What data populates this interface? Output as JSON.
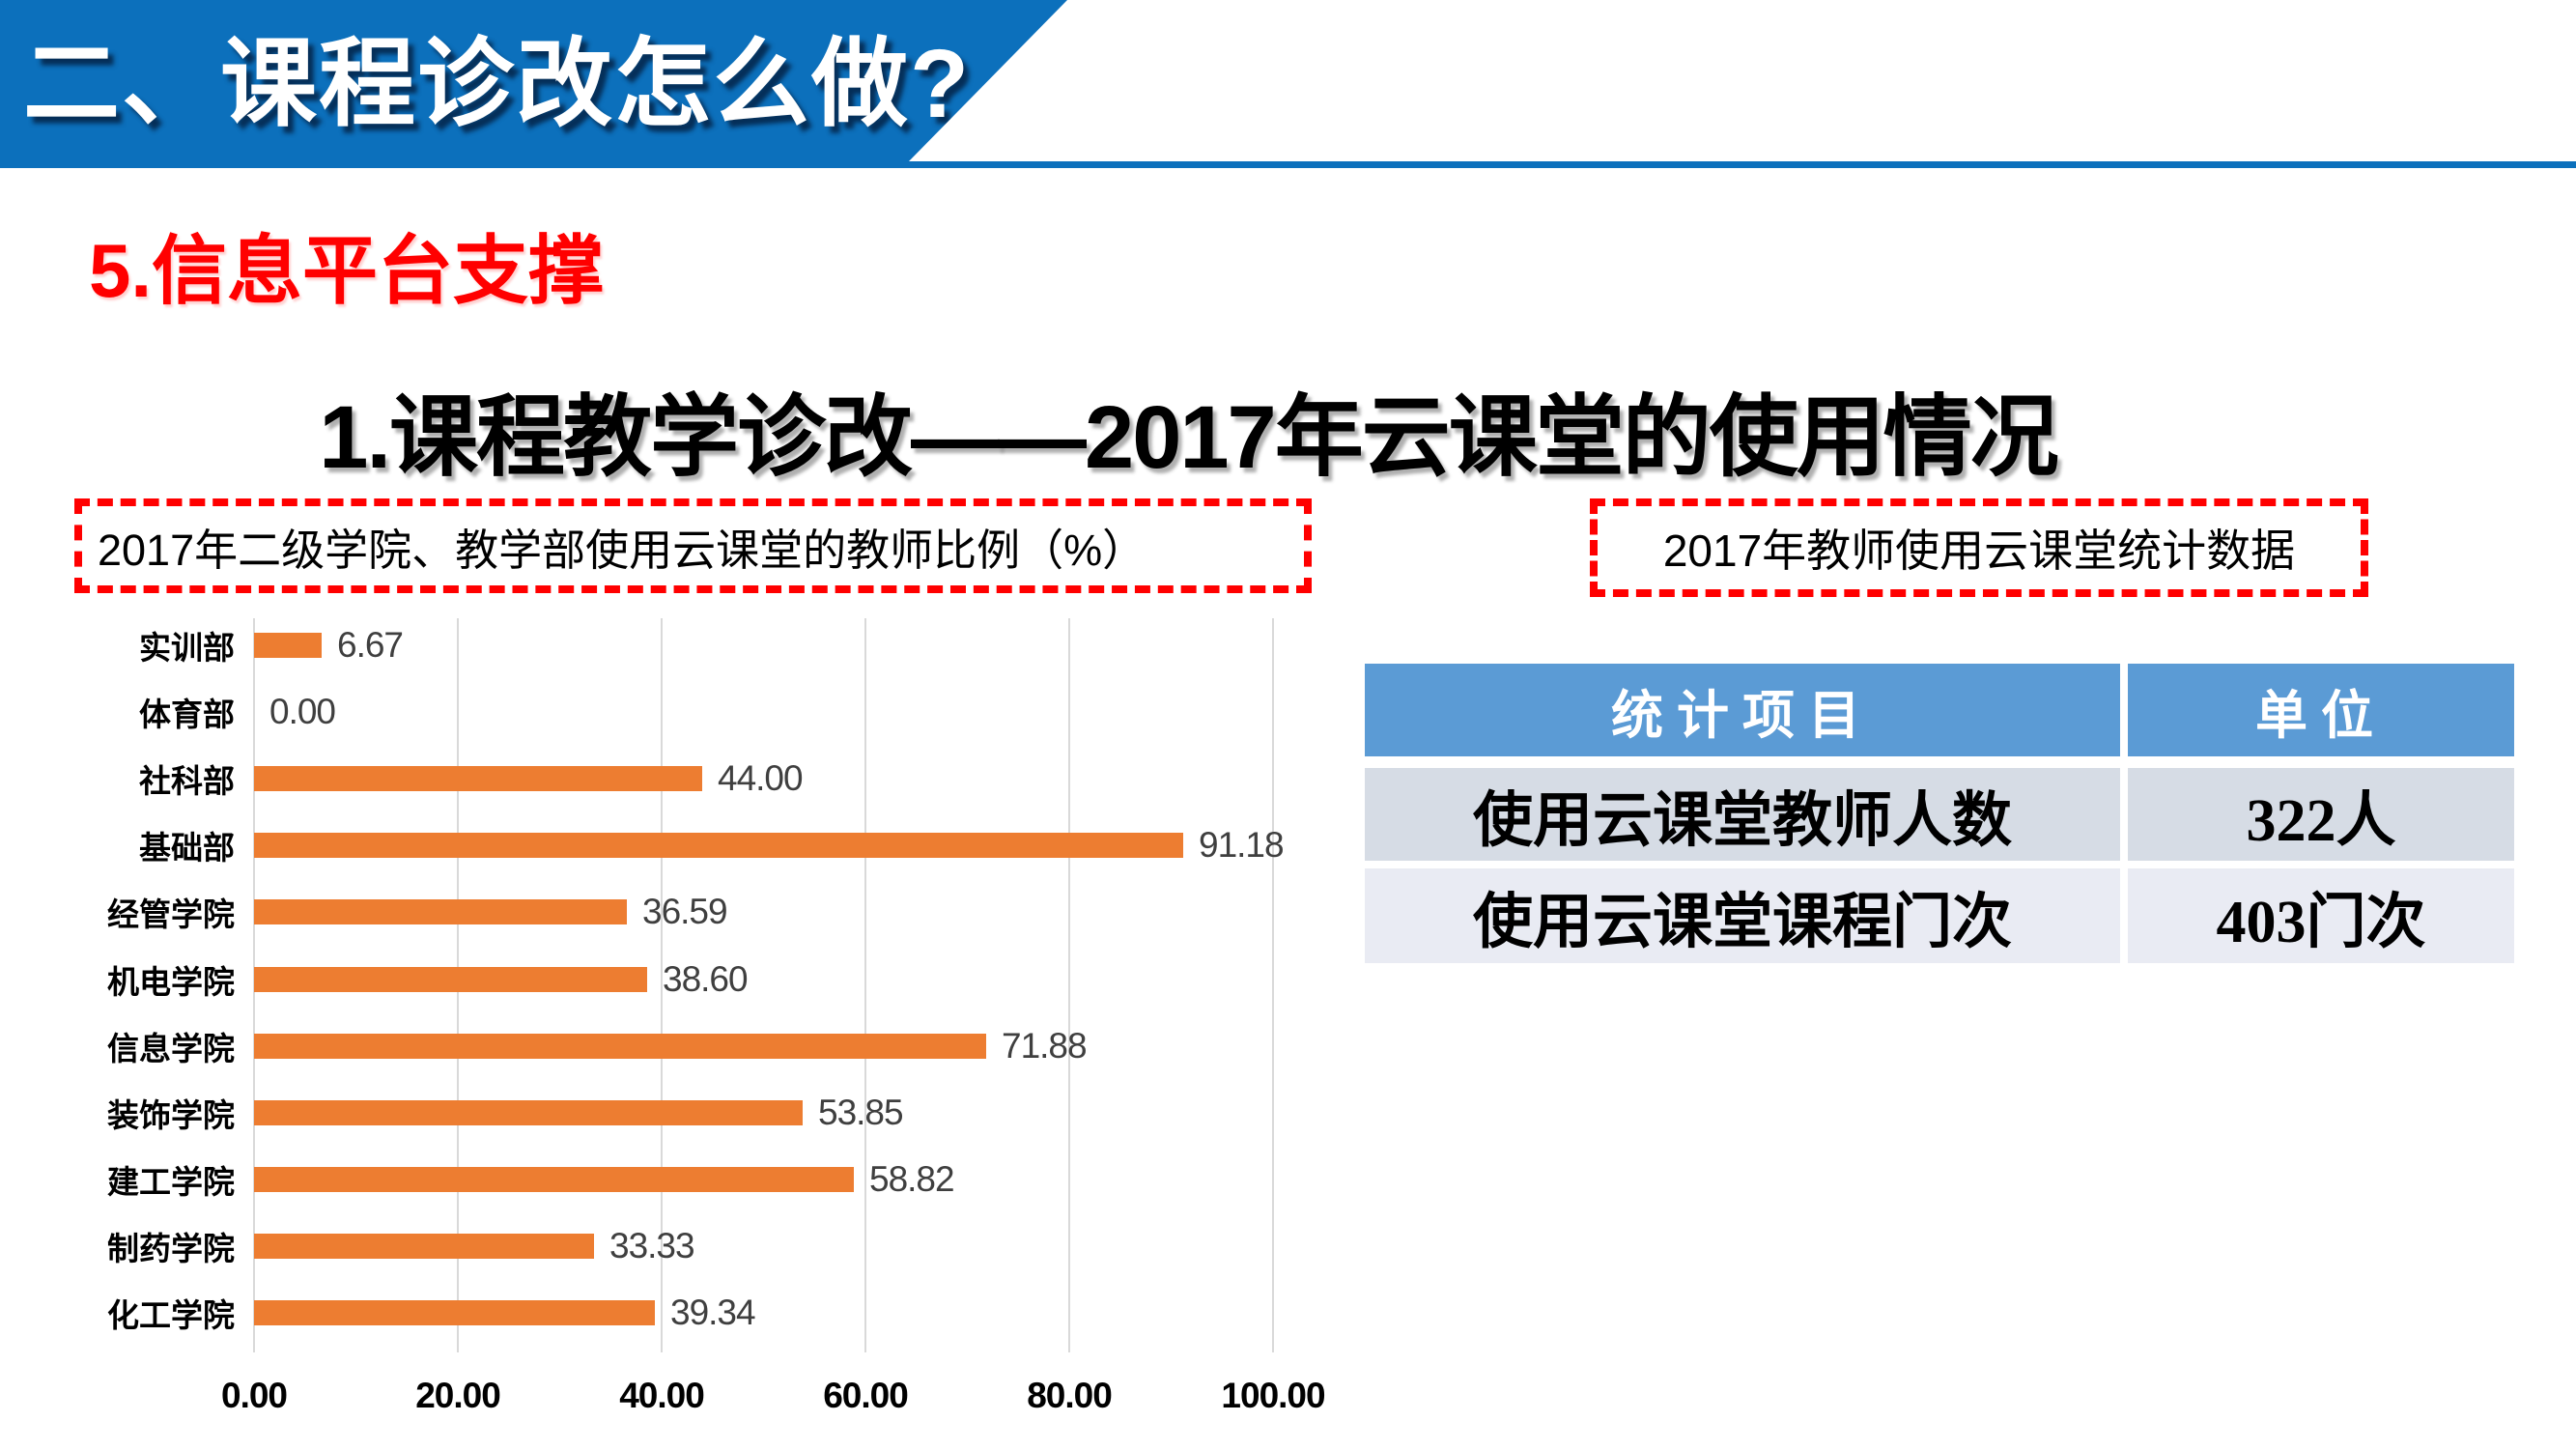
{
  "header": {
    "section_title": "二、课程诊改怎么做?"
  },
  "subtitle": "5.信息平台支撑",
  "main_title": "1.课程教学诊改——2017年云课堂的使用情况",
  "chart_panel": {
    "caption": "2017年二级学院、教学部使用云课堂的教师比例（%）"
  },
  "table_panel": {
    "caption": "2017年教师使用云课堂统计数据",
    "table": {
      "headers": [
        "统计项目",
        "单位"
      ],
      "rows": [
        [
          "使用云课堂教师人数",
          "322人"
        ],
        [
          "使用云课堂课程门次",
          "403门次"
        ]
      ]
    }
  },
  "chart_data": {
    "type": "bar",
    "orientation": "horizontal",
    "title": "2017年二级学院、教学部使用云课堂的教师比例（%）",
    "categories": [
      "实训部",
      "体育部",
      "社科部",
      "基础部",
      "经管学院",
      "机电学院",
      "信息学院",
      "装饰学院",
      "建工学院",
      "制药学院",
      "化工学院"
    ],
    "values": [
      6.67,
      0.0,
      44.0,
      91.18,
      36.59,
      38.6,
      71.88,
      53.85,
      58.82,
      33.33,
      39.34
    ],
    "value_labels": [
      "6.67",
      "0.00",
      "44.00",
      "91.18",
      "36.59",
      "38.60",
      "71.88",
      "53.85",
      "58.82",
      "33.33",
      "39.34"
    ],
    "x_ticks": [
      "0.00",
      "20.00",
      "40.00",
      "60.00",
      "80.00",
      "100.00"
    ],
    "xlim": [
      0,
      100
    ],
    "grid": "vertical-only",
    "legend": "none",
    "bar_color": "#ED7D31",
    "value_label_color": "#3F3F3F"
  },
  "colors": {
    "banner_blue": "#0C70BC",
    "accent_red": "#FF0000",
    "bar_orange": "#ED7D31",
    "gridline_gray": "#D9D9D9",
    "table_header_blue": "#5B9BD5",
    "table_row_light": "#D6DCE5",
    "table_row_lighter": "#E9EBF3",
    "title_black": "#000000"
  }
}
